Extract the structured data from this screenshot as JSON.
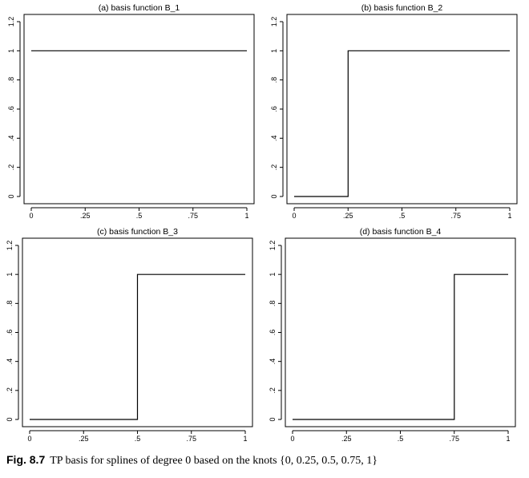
{
  "caption": {
    "label": "Fig. 8.7",
    "text": "TP basis for splines of degree 0 based on the knots {0, 0.25, 0.5, 0.75, 1}"
  },
  "chart_data": [
    {
      "type": "line",
      "title": "(a) basis function B_1",
      "xlim": [
        0,
        1
      ],
      "ylim": [
        0,
        1.2
      ],
      "x_ticks": [
        "0",
        ".25",
        ".5",
        ".75",
        "1"
      ],
      "x_tick_values": [
        0,
        0.25,
        0.5,
        0.75,
        1
      ],
      "y_ticks": [
        "0",
        ".2",
        ".4",
        ".6",
        ".8",
        "1",
        "1.2"
      ],
      "y_tick_values": [
        0,
        0.2,
        0.4,
        0.6,
        0.8,
        1,
        1.2
      ],
      "grid": false,
      "x": [
        0,
        1
      ],
      "y": [
        1,
        1
      ]
    },
    {
      "type": "line",
      "title": "(b) basis function B_2",
      "xlim": [
        0,
        1
      ],
      "ylim": [
        0,
        1.2
      ],
      "x_ticks": [
        "0",
        ".25",
        ".5",
        ".75",
        "1"
      ],
      "x_tick_values": [
        0,
        0.25,
        0.5,
        0.75,
        1
      ],
      "y_ticks": [
        "0",
        ".2",
        ".4",
        ".6",
        ".8",
        "1",
        "1.2"
      ],
      "y_tick_values": [
        0,
        0.2,
        0.4,
        0.6,
        0.8,
        1,
        1.2
      ],
      "grid": false,
      "x": [
        0,
        0.25,
        0.25,
        1
      ],
      "y": [
        0,
        0,
        1,
        1
      ]
    },
    {
      "type": "line",
      "title": "(c) basis function B_3",
      "xlim": [
        0,
        1
      ],
      "ylim": [
        0,
        1.2
      ],
      "x_ticks": [
        "0",
        ".25",
        ".5",
        ".75",
        "1"
      ],
      "x_tick_values": [
        0,
        0.25,
        0.5,
        0.75,
        1
      ],
      "y_ticks": [
        "0",
        ".2",
        ".4",
        ".6",
        ".8",
        "1",
        "1.2"
      ],
      "y_tick_values": [
        0,
        0.2,
        0.4,
        0.6,
        0.8,
        1,
        1.2
      ],
      "grid": false,
      "x": [
        0,
        0.5,
        0.5,
        1
      ],
      "y": [
        0,
        0,
        1,
        1
      ]
    },
    {
      "type": "line",
      "title": "(d) basis function B_4",
      "xlim": [
        0,
        1
      ],
      "ylim": [
        0,
        1.2
      ],
      "x_ticks": [
        "0",
        ".25",
        ".5",
        ".75",
        "1"
      ],
      "x_tick_values": [
        0,
        0.25,
        0.5,
        0.75,
        1
      ],
      "y_ticks": [
        "0",
        ".2",
        ".4",
        ".6",
        ".8",
        "1",
        "1.2"
      ],
      "y_tick_values": [
        0,
        0.2,
        0.4,
        0.6,
        0.8,
        1,
        1.2
      ],
      "grid": false,
      "x": [
        0,
        0.75,
        0.75,
        1
      ],
      "y": [
        0,
        0,
        1,
        1
      ]
    }
  ]
}
